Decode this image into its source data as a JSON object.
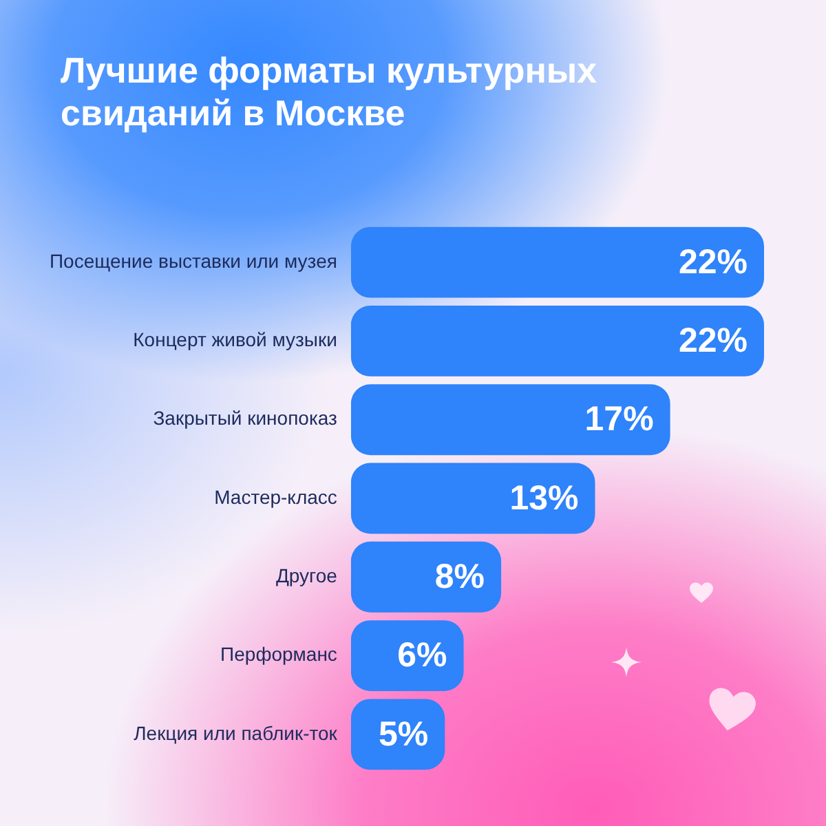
{
  "chart_data": {
    "type": "bar",
    "orientation": "horizontal",
    "title": "Лучшие форматы культурных свиданий в Москве",
    "categories": [
      "Посещение выставки или музея",
      "Концерт живой музыки",
      "Закрытый кинопоказ",
      "Мастер-класс",
      "Другое",
      "Перформанс",
      "Лекция или паблик-ток"
    ],
    "values": [
      22,
      22,
      17,
      13,
      8,
      6,
      5
    ],
    "value_labels": [
      "22%",
      "22%",
      "17%",
      "13%",
      "8%",
      "6%",
      "5%"
    ],
    "color": "#2f83fb",
    "tick_labels": "y"
  }
}
